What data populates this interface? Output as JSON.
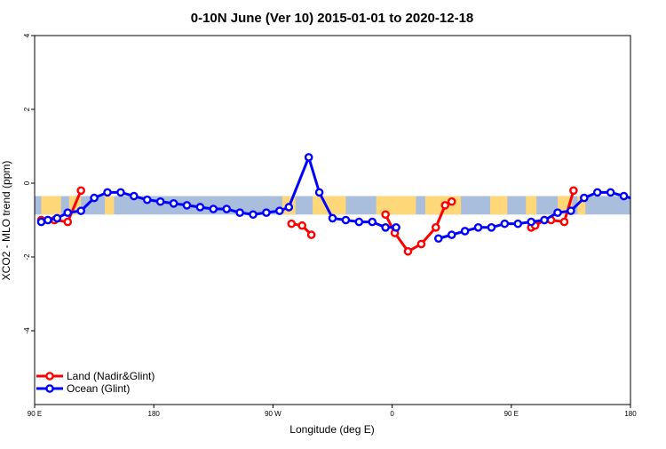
{
  "chart_data": {
    "type": "line",
    "title": "0-10N June (Ver 10)   2015-01-01 to 2020-12-18",
    "xlabel": "Longitude (deg E)",
    "ylabel": "XCO2 - MLO trend (ppm)",
    "xlim": [
      90,
      540
    ],
    "ylim": [
      -6,
      4
    ],
    "x_ticks": [
      {
        "value": 90,
        "label": "90 E"
      },
      {
        "value": 180,
        "label": "180"
      },
      {
        "value": 270,
        "label": "90 W"
      },
      {
        "value": 360,
        "label": "0"
      },
      {
        "value": 450,
        "label": "90 E"
      },
      {
        "value": 540,
        "label": "180"
      }
    ],
    "y_ticks": [
      {
        "value": 4,
        "label": "4"
      },
      {
        "value": 2,
        "label": "2"
      },
      {
        "value": 0,
        "label": "0"
      },
      {
        "value": -2,
        "label": "-2"
      },
      {
        "value": -4,
        "label": "-4"
      }
    ],
    "grid": false,
    "legend_position": "bottom-left",
    "map_band": {
      "y_top": -0.35,
      "y_bottom": -0.85,
      "ocean_color": "#a9bddc",
      "land_color": "#fdd778"
    },
    "land_regions": [
      [
        95,
        110
      ],
      [
        116,
        125
      ],
      [
        143,
        150
      ],
      [
        277,
        287
      ],
      [
        300,
        325
      ],
      [
        348,
        378
      ],
      [
        385,
        412
      ],
      [
        434,
        447
      ],
      [
        461,
        469
      ],
      [
        485,
        496
      ],
      [
        500,
        506
      ]
    ],
    "series": [
      {
        "name": "Land (Nadir&Glint)",
        "color": "#ff0000",
        "segments": [
          {
            "x": [
              95,
              100,
              105,
              115,
              125
            ],
            "y": [
              -1.0,
              -1.0,
              -1.0,
              -1.05,
              -0.2
            ]
          },
          {
            "x": [
              284,
              292,
              299
            ],
            "y": [
              -1.1,
              -1.15,
              -1.4
            ]
          },
          {
            "x": [
              355,
              362,
              372,
              382,
              393,
              400,
              405
            ],
            "y": [
              -0.85,
              -1.35,
              -1.85,
              -1.65,
              -1.2,
              -0.6,
              -0.5
            ]
          },
          {
            "x": [
              465,
              468,
              475,
              480,
              490,
              497
            ],
            "y": [
              -1.2,
              -1.15,
              -1.0,
              -1.0,
              -1.05,
              -0.2
            ]
          }
        ]
      },
      {
        "name": "Ocean (Glint)",
        "color": "#0000ff",
        "segments": [
          {
            "x": [
              95,
              100,
              107,
              115,
              125,
              135,
              145,
              155,
              165,
              175,
              185,
              195,
              205,
              215,
              225,
              235,
              245,
              255,
              265,
              275,
              282,
              297,
              305,
              315,
              325,
              335,
              345,
              355,
              363
            ],
            "y": [
              -1.05,
              -1.0,
              -0.95,
              -0.8,
              -0.75,
              -0.4,
              -0.25,
              -0.25,
              -0.35,
              -0.45,
              -0.5,
              -0.55,
              -0.6,
              -0.65,
              -0.7,
              -0.7,
              -0.8,
              -0.85,
              -0.8,
              -0.75,
              -0.65,
              0.7,
              -0.25,
              -0.95,
              -1.0,
              -1.05,
              -1.05,
              -1.2,
              -1.2
            ]
          },
          {
            "x": [
              395,
              405,
              415,
              425,
              435,
              445,
              455,
              465,
              475,
              485,
              495,
              505,
              515,
              525,
              535,
              545
            ],
            "y": [
              -1.5,
              -1.4,
              -1.3,
              -1.2,
              -1.2,
              -1.1,
              -1.1,
              -1.05,
              -1.0,
              -0.8,
              -0.75,
              -0.4,
              -0.25,
              -0.25,
              -0.35,
              -0.45
            ]
          }
        ]
      }
    ]
  }
}
